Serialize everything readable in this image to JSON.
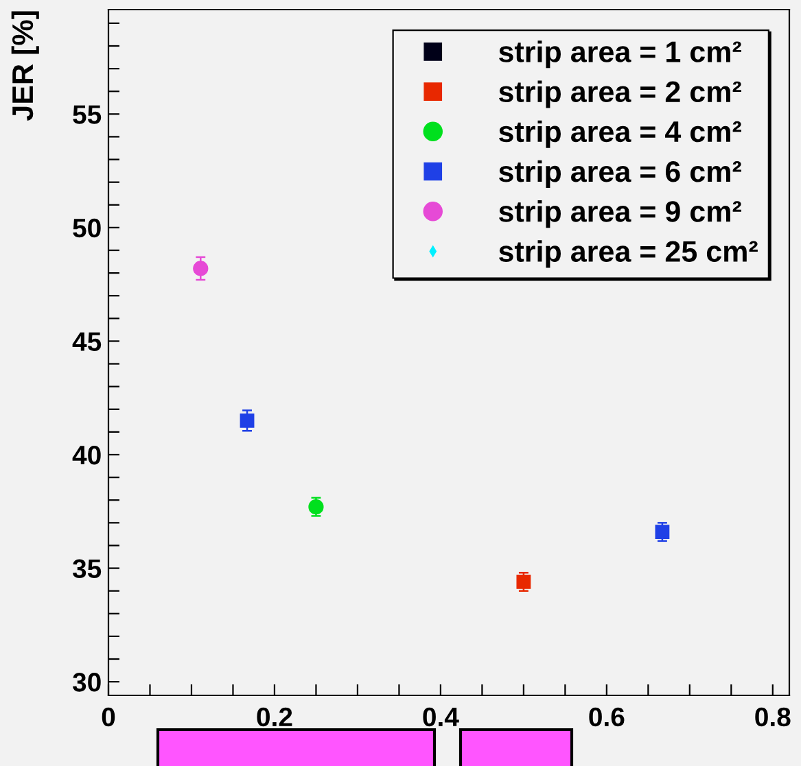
{
  "chart_data": {
    "type": "scatter",
    "ylabel": "JER [%]",
    "legend": "top right",
    "xlim": [
      0,
      0.82
    ],
    "ylim": [
      29.4,
      59.6
    ],
    "xticks": [
      0,
      {
        "value": 0.05,
        "label": null
      },
      {
        "value": 0.1,
        "label": null
      },
      {
        "value": 0.15,
        "label": null
      },
      0.2,
      {
        "value": 0.25,
        "label": null
      },
      {
        "value": 0.3,
        "label": null
      },
      {
        "value": 0.35,
        "label": null
      },
      0.4,
      {
        "value": 0.45,
        "label": null
      },
      {
        "value": 0.5,
        "label": null
      },
      {
        "value": 0.55,
        "label": null
      },
      0.6,
      {
        "value": 0.65,
        "label": null
      },
      {
        "value": 0.7,
        "label": null
      },
      {
        "value": 0.75,
        "label": null
      },
      0.8
    ],
    "yticks": [
      30,
      {
        "value": 31,
        "label": null
      },
      {
        "value": 32,
        "label": null
      },
      {
        "value": 33,
        "label": null
      },
      {
        "value": 34,
        "label": null
      },
      35,
      {
        "value": 36,
        "label": null
      },
      {
        "value": 37,
        "label": null
      },
      {
        "value": 38,
        "label": null
      },
      {
        "value": 39,
        "label": null
      },
      40,
      {
        "value": 41,
        "label": null
      },
      {
        "value": 42,
        "label": null
      },
      {
        "value": 43,
        "label": null
      },
      {
        "value": 44,
        "label": null
      },
      45,
      {
        "value": 46,
        "label": null
      },
      {
        "value": 47,
        "label": null
      },
      {
        "value": 48,
        "label": null
      },
      {
        "value": 49,
        "label": null
      },
      50,
      {
        "value": 51,
        "label": null
      },
      {
        "value": 52,
        "label": null
      },
      {
        "value": 53,
        "label": null
      },
      {
        "value": 54,
        "label": null
      },
      55,
      {
        "value": 56,
        "label": null
      },
      {
        "value": 57,
        "label": null
      },
      {
        "value": 58,
        "label": null
      },
      {
        "value": 59,
        "label": null
      }
    ],
    "series": [
      {
        "name": "strip area = 1 cm²",
        "color": "#000018",
        "marker": "square"
      },
      {
        "name": "strip area = 2 cm²",
        "color": "#e82800",
        "marker": "square",
        "x": [
          0.5
        ],
        "values": [
          34.4
        ],
        "errors": [
          0.4
        ]
      },
      {
        "name": "strip area = 4 cm²",
        "color": "#00e01e",
        "marker": "circle",
        "x": [
          0.25
        ],
        "values": [
          37.7
        ],
        "errors": [
          0.4
        ]
      },
      {
        "name": "strip area = 6 cm²",
        "color": "#1f40e6",
        "marker": "square",
        "x": [
          0.167,
          0.667
        ],
        "values": [
          41.5,
          36.6
        ],
        "errors": [
          0.45,
          0.4
        ]
      },
      {
        "name": "strip area = 9 cm²",
        "color": "#e64ad6",
        "marker": "circle",
        "x": [
          0.111
        ],
        "values": [
          48.2
        ],
        "errors": [
          0.5
        ]
      },
      {
        "name": "strip area = 25 cm²",
        "color": "#00f0ff",
        "marker": "diamond"
      }
    ]
  }
}
